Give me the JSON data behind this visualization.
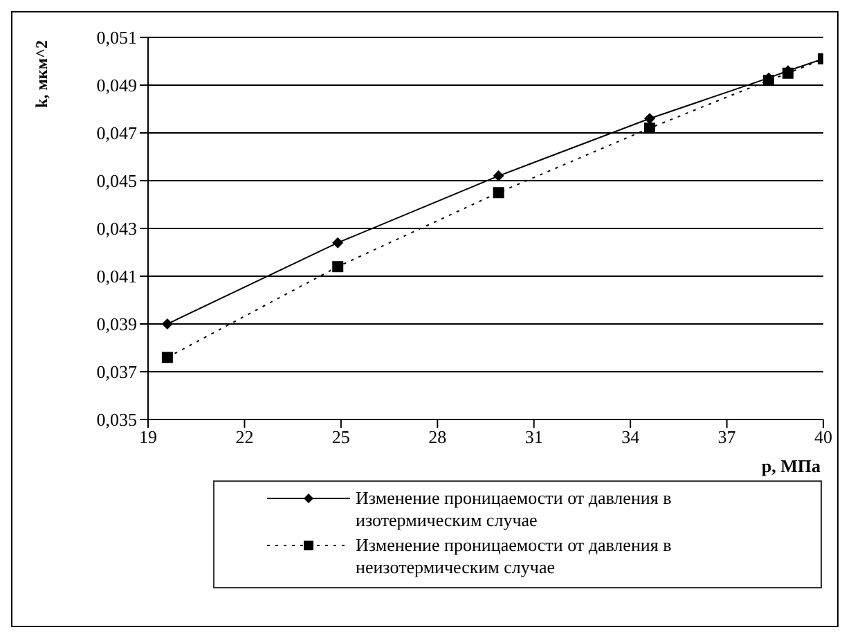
{
  "chart_data": {
    "type": "line",
    "xlabel": "p, МПа",
    "ylabel": "k, мкм^2",
    "xlim": [
      19,
      40
    ],
    "xticks": [
      19,
      22,
      25,
      28,
      31,
      34,
      37,
      40
    ],
    "ylim": [
      0.035,
      0.051
    ],
    "yticks": [
      {
        "value": 0.035,
        "label": "0,035"
      },
      {
        "value": 0.037,
        "label": "0,037"
      },
      {
        "value": 0.039,
        "label": "0,039"
      },
      {
        "value": 0.041,
        "label": "0,041"
      },
      {
        "value": 0.043,
        "label": "0,043"
      },
      {
        "value": 0.045,
        "label": "0,045"
      },
      {
        "value": 0.047,
        "label": "0,047"
      },
      {
        "value": 0.049,
        "label": "0,049"
      },
      {
        "value": 0.051,
        "label": "0,051"
      }
    ],
    "grid": "y",
    "legend": "bottom",
    "series": [
      {
        "name": "Изменение проницаемости от давления в изотермическим случае",
        "color": "#000000",
        "marker": "diamond",
        "line_style": "solid",
        "x": [
          19.6,
          24.9,
          29.9,
          34.6,
          38.3,
          38.9,
          40
        ],
        "values": [
          0.039,
          0.0424,
          0.0452,
          0.0476,
          0.0493,
          0.0496,
          0.0501
        ]
      },
      {
        "name": "Изменение проницаемости от давления в неизотермическим случае",
        "color": "#000000",
        "marker": "square",
        "line_style": "dotted",
        "x": [
          19.6,
          24.9,
          29.9,
          34.6,
          38.3,
          38.9,
          40
        ],
        "values": [
          0.0376,
          0.0414,
          0.0445,
          0.0472,
          0.0492,
          0.0495,
          0.0501
        ]
      }
    ]
  }
}
